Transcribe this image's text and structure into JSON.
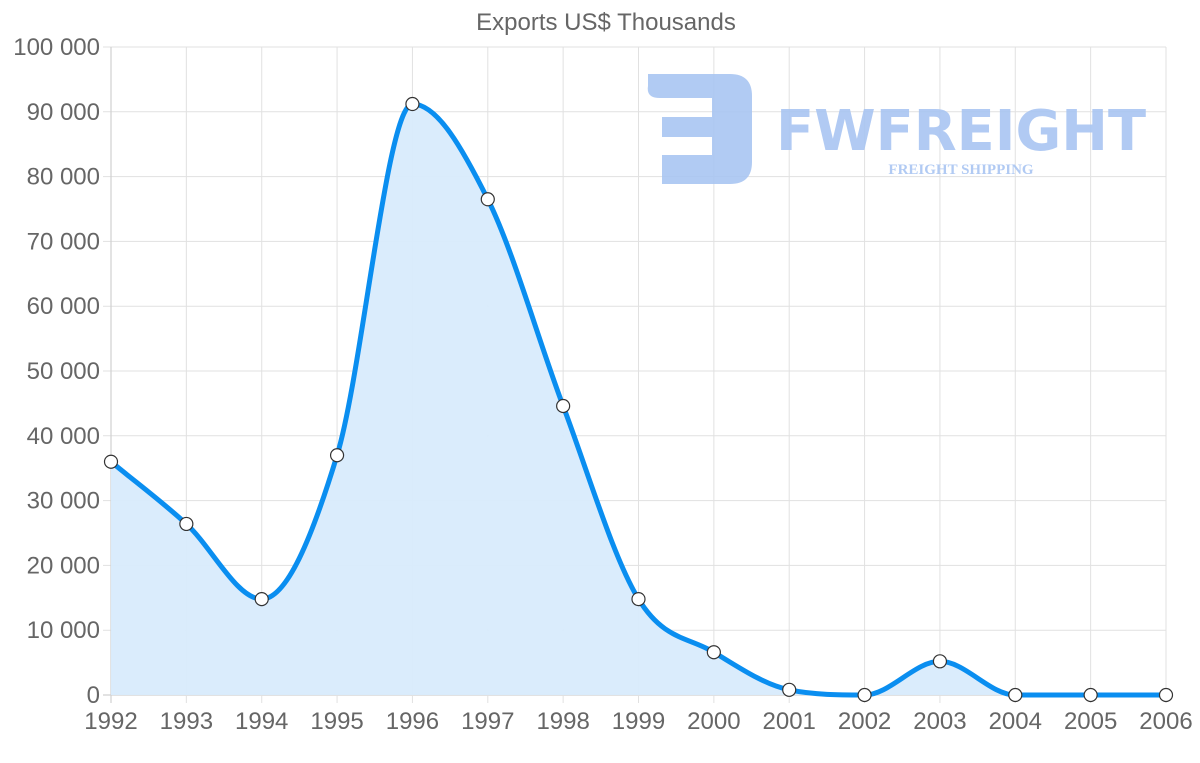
{
  "chart_data": {
    "type": "area",
    "title": "Exports US$ Thousands",
    "xlabel": "",
    "ylabel": "",
    "categories": [
      "1992",
      "1993",
      "1994",
      "1995",
      "1996",
      "1997",
      "1998",
      "1999",
      "2000",
      "2001",
      "2002",
      "2003",
      "2004",
      "2005",
      "2006"
    ],
    "series": [
      {
        "name": "Exports US$ Thousands",
        "values": [
          36000,
          26400,
          14800,
          37000,
          91200,
          76500,
          44600,
          14800,
          6600,
          800,
          0,
          5200,
          0,
          0,
          0
        ]
      }
    ],
    "ylim": [
      0,
      100000
    ],
    "y_ticks": [
      "0",
      "10 000",
      "20 000",
      "30 000",
      "40 000",
      "50 000",
      "60 000",
      "70 000",
      "80 000",
      "90 000",
      "100 000"
    ],
    "grid": true,
    "legend": "none",
    "colors": {
      "line": "#0a8ef0",
      "fill": "#d8ebfc",
      "point_fill": "#ffffff",
      "point_stroke": "#333333",
      "grid": "#e1e1e1",
      "text": "#666666"
    }
  },
  "watermark": {
    "brand": "FWFREIGHT",
    "tagline": "FREIGHT SHIPPING",
    "color": "#a9c5f2"
  }
}
